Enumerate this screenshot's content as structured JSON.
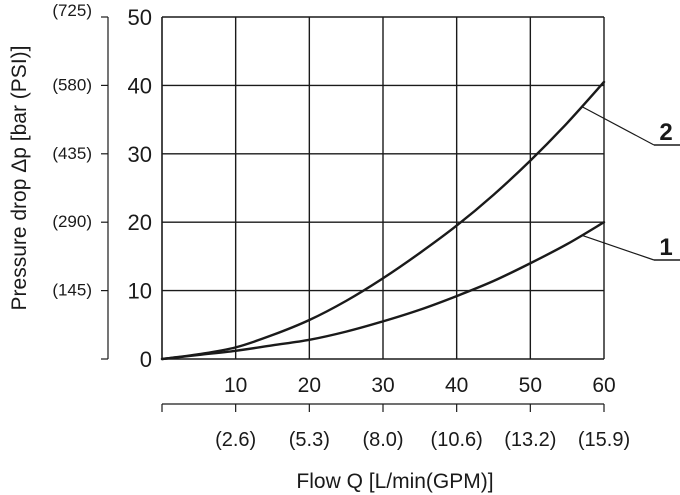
{
  "chart_data": {
    "type": "line",
    "title": "",
    "xlabel": "Flow Q [L/min(GPM)]",
    "ylabel": "Pressure drop  Δp [bar (PSI)]",
    "xlim": [
      0,
      60
    ],
    "ylim": [
      0,
      50
    ],
    "grid": true,
    "x_ticks": [
      10,
      20,
      30,
      40,
      50,
      60
    ],
    "x_ticks_secondary": [
      "(2.6)",
      "(5.3)",
      "(8.0)",
      "(10.6)",
      "(13.2)",
      "(15.9)"
    ],
    "y_ticks": [
      0,
      10,
      20,
      30,
      40,
      50
    ],
    "y_ticks_secondary": [
      "(145)",
      "(290)",
      "(435)",
      "(580)",
      "(725)"
    ],
    "series": [
      {
        "name": "1",
        "x": [
          0,
          5,
          10,
          15,
          20,
          25,
          30,
          35,
          40,
          45,
          50,
          55,
          60
        ],
        "y": [
          0,
          0.6,
          1.2,
          2.0,
          2.8,
          4.0,
          5.5,
          7.2,
          9.2,
          11.4,
          14.0,
          16.8,
          20.0
        ]
      },
      {
        "name": "2",
        "x": [
          0,
          5,
          10,
          15,
          20,
          25,
          30,
          35,
          40,
          45,
          50,
          55,
          60
        ],
        "y": [
          0,
          0.7,
          1.7,
          3.5,
          5.7,
          8.5,
          11.8,
          15.5,
          19.5,
          24.0,
          29.0,
          34.5,
          40.5
        ]
      }
    ]
  }
}
